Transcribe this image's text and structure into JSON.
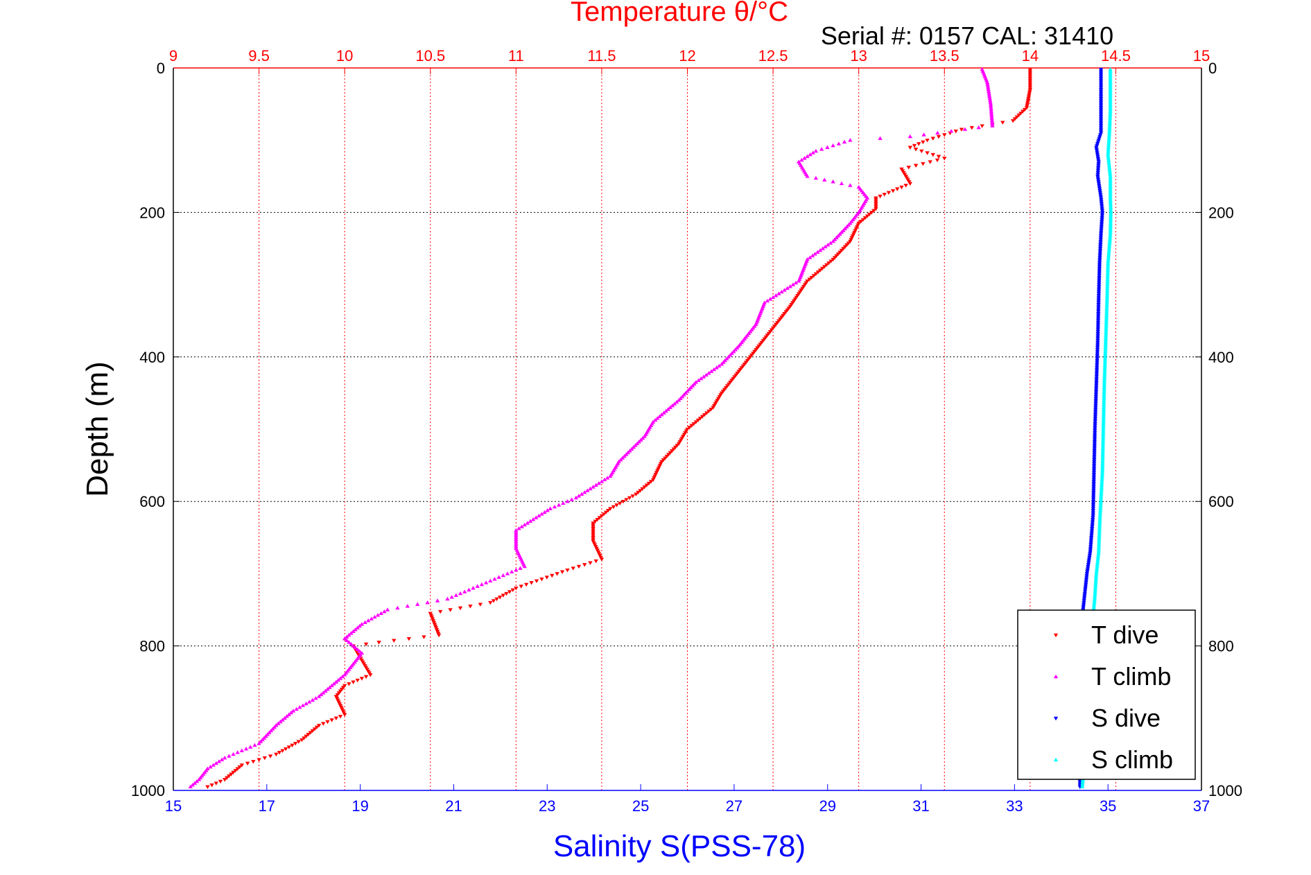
{
  "chart_data": {
    "type": "scatter",
    "title": "Temperature θ/°C",
    "subtitle": "Serial #: 0157  CAL: 31410",
    "ylabel": "Depth (m)",
    "xlabel_bottom": "Salinity S(PSS-78)",
    "y_reversed": true,
    "ylim": [
      0,
      1000
    ],
    "y_ticks": [
      0,
      200,
      400,
      600,
      800,
      1000
    ],
    "temperature_axis": {
      "position": "top",
      "xlim": [
        9,
        15
      ],
      "ticks": [
        "9",
        "9.5",
        "10",
        "10.5",
        "11",
        "11.5",
        "12",
        "12.5",
        "13",
        "13.5",
        "14",
        "14.5",
        "15"
      ],
      "color": "#ff0000"
    },
    "salinity_axis": {
      "position": "bottom",
      "xlim": [
        15,
        37
      ],
      "ticks": [
        "15",
        "17",
        "19",
        "21",
        "23",
        "25",
        "27",
        "29",
        "31",
        "33",
        "35",
        "37"
      ],
      "color": "#0000ff"
    },
    "grid": true,
    "legend_position": "bottom-right",
    "series": [
      {
        "name": "T dive",
        "axis": "temperature",
        "color": "#ff0000",
        "marker": "down-triangle",
        "points": [
          [
            14.0,
            2
          ],
          [
            14.0,
            30
          ],
          [
            13.98,
            55
          ],
          [
            13.9,
            73
          ],
          [
            13.6,
            85
          ],
          [
            13.4,
            100
          ],
          [
            13.3,
            110
          ],
          [
            13.5,
            125
          ],
          [
            13.25,
            140
          ],
          [
            13.3,
            160
          ],
          [
            13.1,
            180
          ],
          [
            13.1,
            195
          ],
          [
            13.0,
            215
          ],
          [
            12.95,
            240
          ],
          [
            12.85,
            265
          ],
          [
            12.7,
            295
          ],
          [
            12.6,
            330
          ],
          [
            12.5,
            360
          ],
          [
            12.4,
            390
          ],
          [
            12.3,
            420
          ],
          [
            12.2,
            450
          ],
          [
            12.15,
            470
          ],
          [
            12.0,
            500
          ],
          [
            11.95,
            520
          ],
          [
            11.85,
            545
          ],
          [
            11.8,
            570
          ],
          [
            11.7,
            590
          ],
          [
            11.55,
            610
          ],
          [
            11.45,
            630
          ],
          [
            11.45,
            655
          ],
          [
            11.5,
            680
          ],
          [
            11.3,
            695
          ],
          [
            11.0,
            720
          ],
          [
            10.85,
            740
          ],
          [
            10.5,
            755
          ],
          [
            10.55,
            785
          ],
          [
            10.2,
            795
          ],
          [
            10.05,
            800
          ],
          [
            10.1,
            820
          ],
          [
            10.15,
            840
          ],
          [
            10.0,
            855
          ],
          [
            9.95,
            870
          ],
          [
            10.0,
            895
          ],
          [
            9.85,
            910
          ],
          [
            9.75,
            930
          ],
          [
            9.6,
            950
          ],
          [
            9.4,
            965
          ],
          [
            9.3,
            985
          ],
          [
            9.2,
            995
          ]
        ]
      },
      {
        "name": "T climb",
        "axis": "temperature",
        "color": "#ff00ff",
        "marker": "up-triangle",
        "points": [
          [
            13.72,
            2
          ],
          [
            13.75,
            20
          ],
          [
            13.77,
            50
          ],
          [
            13.78,
            80
          ],
          [
            13.3,
            95
          ],
          [
            12.95,
            100
          ],
          [
            12.75,
            115
          ],
          [
            12.65,
            130
          ],
          [
            12.7,
            150
          ],
          [
            13.0,
            165
          ],
          [
            13.05,
            180
          ],
          [
            13.0,
            200
          ],
          [
            12.95,
            215
          ],
          [
            12.85,
            240
          ],
          [
            12.7,
            265
          ],
          [
            12.65,
            295
          ],
          [
            12.45,
            325
          ],
          [
            12.4,
            355
          ],
          [
            12.3,
            385
          ],
          [
            12.2,
            410
          ],
          [
            12.05,
            435
          ],
          [
            11.95,
            460
          ],
          [
            11.8,
            490
          ],
          [
            11.75,
            510
          ],
          [
            11.6,
            545
          ],
          [
            11.55,
            565
          ],
          [
            11.35,
            595
          ],
          [
            11.2,
            610
          ],
          [
            11.0,
            640
          ],
          [
            11.0,
            665
          ],
          [
            11.05,
            690
          ],
          [
            10.85,
            710
          ],
          [
            10.6,
            735
          ],
          [
            10.25,
            750
          ],
          [
            10.1,
            770
          ],
          [
            10.0,
            790
          ],
          [
            10.1,
            810
          ],
          [
            10.0,
            840
          ],
          [
            9.85,
            870
          ],
          [
            9.7,
            890
          ],
          [
            9.6,
            910
          ],
          [
            9.5,
            935
          ],
          [
            9.3,
            955
          ],
          [
            9.2,
            970
          ],
          [
            9.15,
            985
          ],
          [
            9.1,
            995
          ]
        ]
      },
      {
        "name": "S dive",
        "axis": "salinity",
        "color": "#0000ff",
        "marker": "down-triangle",
        "points": [
          [
            34.85,
            2
          ],
          [
            34.85,
            30
          ],
          [
            34.85,
            60
          ],
          [
            34.85,
            90
          ],
          [
            34.75,
            110
          ],
          [
            34.8,
            130
          ],
          [
            34.78,
            150
          ],
          [
            34.85,
            180
          ],
          [
            34.88,
            200
          ],
          [
            34.85,
            230
          ],
          [
            34.82,
            270
          ],
          [
            34.8,
            320
          ],
          [
            34.78,
            380
          ],
          [
            34.75,
            440
          ],
          [
            34.72,
            500
          ],
          [
            34.7,
            560
          ],
          [
            34.68,
            620
          ],
          [
            34.62,
            670
          ],
          [
            34.55,
            700
          ],
          [
            34.5,
            730
          ],
          [
            34.45,
            760
          ],
          [
            34.45,
            800
          ],
          [
            34.43,
            850
          ],
          [
            34.42,
            900
          ],
          [
            34.4,
            950
          ],
          [
            34.4,
            995
          ]
        ]
      },
      {
        "name": "S climb",
        "axis": "salinity",
        "color": "#00ffff",
        "marker": "up-triangle",
        "points": [
          [
            35.05,
            2
          ],
          [
            35.05,
            30
          ],
          [
            35.05,
            60
          ],
          [
            35.03,
            90
          ],
          [
            35.0,
            120
          ],
          [
            35.05,
            150
          ],
          [
            35.05,
            180
          ],
          [
            35.06,
            200
          ],
          [
            35.05,
            230
          ],
          [
            35.0,
            270
          ],
          [
            34.98,
            320
          ],
          [
            34.95,
            380
          ],
          [
            34.92,
            440
          ],
          [
            34.9,
            500
          ],
          [
            34.88,
            560
          ],
          [
            34.83,
            620
          ],
          [
            34.8,
            670
          ],
          [
            34.75,
            700
          ],
          [
            34.72,
            730
          ],
          [
            34.68,
            760
          ],
          [
            34.65,
            800
          ],
          [
            34.6,
            850
          ],
          [
            34.55,
            900
          ],
          [
            34.5,
            950
          ],
          [
            34.45,
            995
          ]
        ]
      }
    ]
  }
}
